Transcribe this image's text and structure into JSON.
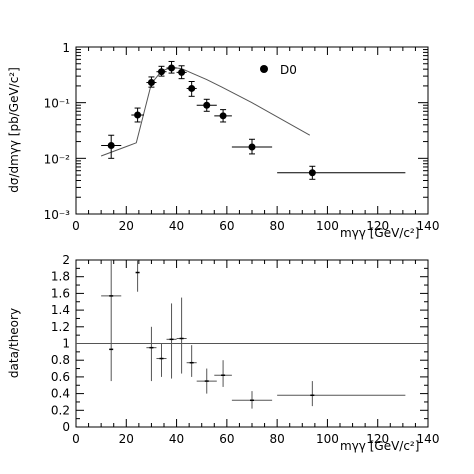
{
  "chart_data": [
    {
      "type": "scatter",
      "panel": "top",
      "xlabel": "mγγ [GeV/c²]",
      "ylabel": "dσ/dmγγ [pb/GeV/c²]",
      "xlim": [
        0,
        140
      ],
      "ylim": [
        0.001,
        1
      ],
      "yscale": "log",
      "x_ticks": [
        "0",
        "20",
        "40",
        "60",
        "80",
        "100",
        "120",
        "140"
      ],
      "y_ticks": [
        "10⁻³",
        "10⁻²",
        "10⁻¹",
        "1"
      ],
      "legend": {
        "label": "D0",
        "position": "top-right"
      },
      "series": [
        {
          "name": "D0",
          "points": [
            {
              "x": 14,
              "y": 0.017,
              "xerr": 4,
              "ylo": 0.01,
              "yhi": 0.026
            },
            {
              "x": 24.5,
              "y": 0.06,
              "xerr": 2.5,
              "ylo": 0.045,
              "yhi": 0.08
            },
            {
              "x": 30,
              "y": 0.23,
              "xerr": 2,
              "ylo": 0.19,
              "yhi": 0.29
            },
            {
              "x": 34,
              "y": 0.36,
              "xerr": 2,
              "ylo": 0.3,
              "yhi": 0.45
            },
            {
              "x": 38,
              "y": 0.42,
              "xerr": 2,
              "ylo": 0.34,
              "yhi": 0.55
            },
            {
              "x": 42,
              "y": 0.35,
              "xerr": 2,
              "ylo": 0.27,
              "yhi": 0.46
            },
            {
              "x": 46,
              "y": 0.18,
              "xerr": 2,
              "ylo": 0.13,
              "yhi": 0.24
            },
            {
              "x": 52,
              "y": 0.09,
              "xerr": 4,
              "ylo": 0.07,
              "yhi": 0.115
            },
            {
              "x": 58.5,
              "y": 0.058,
              "xerr": 3.5,
              "ylo": 0.045,
              "yhi": 0.075
            },
            {
              "x": 70,
              "y": 0.016,
              "xerr": 8,
              "ylo": 0.012,
              "yhi": 0.022
            },
            {
              "x": 94,
              "y": 0.0055,
              "xerr": 14,
              "ylo": 0.0042,
              "yhi": 0.0072,
              "xlo_edge": 80,
              "xhi_edge": 131
            }
          ]
        }
      ],
      "theory_curve": {
        "x": [
          10,
          24,
          30,
          34,
          38,
          42,
          46,
          52,
          58,
          70,
          93
        ],
        "y": [
          0.011,
          0.019,
          0.22,
          0.37,
          0.43,
          0.41,
          0.34,
          0.26,
          0.19,
          0.1,
          0.026
        ]
      }
    },
    {
      "type": "scatter",
      "panel": "bottom",
      "xlabel": "mγγ [GeV/c²]",
      "ylabel": "data/theory",
      "xlim": [
        0,
        140
      ],
      "ylim": [
        0,
        2
      ],
      "x_ticks": [
        "0",
        "20",
        "40",
        "60",
        "80",
        "100",
        "120",
        "140"
      ],
      "y_ticks": [
        "0",
        "0.2",
        "0.4",
        "0.6",
        "0.8",
        "1",
        "1.2",
        "1.4",
        "1.6",
        "1.8",
        "2"
      ],
      "reference_line": 1,
      "series": [
        {
          "name": "",
          "points": [
            {
              "x": 14,
              "y": 1.57,
              "xlo": 10,
              "xhi": 18,
              "ylo": 0.55,
              "yhi": 2.0
            },
            {
              "x": 14,
              "y": 0.93,
              "xlo": 14,
              "xhi": 14,
              "ylo": 0.93,
              "yhi": 0.93
            },
            {
              "x": 24.5,
              "y": 1.85,
              "xlo": 24.5,
              "xhi": 24.5,
              "ylo": 1.62,
              "yhi": 2.0
            },
            {
              "x": 30,
              "y": 0.95,
              "xlo": 28,
              "xhi": 32,
              "ylo": 0.55,
              "yhi": 1.2
            },
            {
              "x": 34,
              "y": 0.82,
              "xlo": 32,
              "xhi": 36,
              "ylo": 0.6,
              "yhi": 1.0
            },
            {
              "x": 38,
              "y": 1.05,
              "xlo": 36,
              "xhi": 40,
              "ylo": 0.58,
              "yhi": 1.48
            },
            {
              "x": 42,
              "y": 1.06,
              "xlo": 40,
              "xhi": 44,
              "ylo": 0.64,
              "yhi": 1.55
            },
            {
              "x": 46,
              "y": 0.77,
              "xlo": 44,
              "xhi": 48,
              "ylo": 0.6,
              "yhi": 0.98
            },
            {
              "x": 52,
              "y": 0.55,
              "xlo": 48,
              "xhi": 56,
              "ylo": 0.4,
              "yhi": 0.7
            },
            {
              "x": 58.5,
              "y": 0.62,
              "xlo": 55,
              "xhi": 62,
              "ylo": 0.48,
              "yhi": 0.8
            },
            {
              "x": 70,
              "y": 0.32,
              "xlo": 62,
              "xhi": 78,
              "ylo": 0.22,
              "yhi": 0.43
            },
            {
              "x": 94,
              "y": 0.38,
              "xlo": 80,
              "xhi": 131,
              "ylo": 0.25,
              "yhi": 0.55
            }
          ]
        }
      ]
    }
  ],
  "labels": {
    "legend": "D0",
    "top_ylabel": "dσ/dmγγ [pb/GeV/c²]",
    "top_xlabel": "mγγ [GeV/c²]",
    "bottom_ylabel": "data/theory",
    "bottom_xlabel": "mγγ [GeV/c²]"
  },
  "colors": {
    "marker": "#000000",
    "line": "#555555",
    "axis": "#000000"
  }
}
